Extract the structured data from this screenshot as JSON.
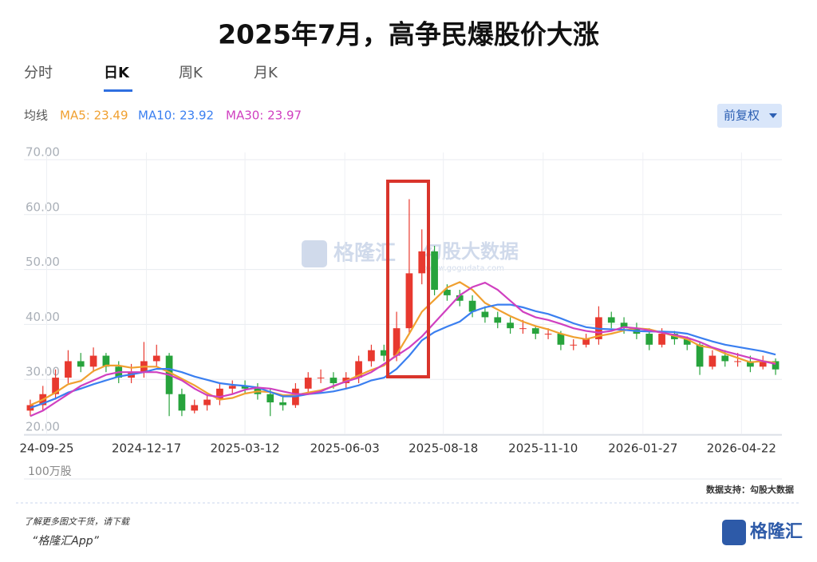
{
  "header": {
    "title": "2025年7月，高争民爆股价大涨",
    "tabs": [
      "分时",
      "日K",
      "周K",
      "月K"
    ],
    "active_tab": 1
  },
  "watermark": {
    "brand": "格隆汇",
    "site_name": "勾股大数据",
    "url": "www.gogudata.com"
  },
  "chart_data": {
    "type": "candlestick",
    "ma_label": "均线",
    "adjust_button": "前复权",
    "volume_unit": "100万股",
    "source": "数据支持：勾股大数据",
    "up_color": "#e8392f",
    "down_color": "#27a33c",
    "grid": true,
    "open": [
      23,
      24,
      26,
      29,
      32,
      31,
      33,
      31,
      29,
      30,
      32,
      33,
      26,
      23,
      24,
      25,
      27,
      27.5,
      27,
      26,
      24.5,
      24,
      27,
      29,
      29,
      28,
      29,
      32,
      34,
      33,
      38,
      48,
      52,
      45,
      44,
      43,
      41,
      40,
      39,
      38,
      38,
      37,
      37,
      35,
      35,
      36,
      40,
      39,
      38,
      37,
      35,
      37,
      36,
      35,
      31,
      33,
      32,
      32,
      31,
      32
    ],
    "high": [
      25,
      27.5,
      30.5,
      34,
      33.5,
      34.5,
      33.5,
      32,
      31.5,
      35.5,
      35,
      33.5,
      27,
      25,
      26,
      28,
      28.5,
      28.5,
      28,
      27,
      25.5,
      28,
      30,
      30.5,
      30,
      30,
      33,
      35,
      35,
      41,
      61.5,
      56,
      53,
      46,
      45,
      44,
      42,
      41,
      40,
      39.5,
      38.5,
      38,
      37.5,
      36,
      37,
      42,
      41,
      40,
      39,
      38,
      38,
      37.5,
      36.5,
      35.5,
      34,
      34,
      33.5,
      33,
      33,
      32.5
    ],
    "low": [
      22,
      23,
      25,
      28,
      30,
      30,
      30,
      28,
      28,
      29,
      31,
      22,
      22,
      22.5,
      23,
      24,
      26,
      26,
      25,
      22,
      23,
      23.5,
      26,
      28,
      27,
      27,
      28,
      31,
      32,
      32,
      37,
      46,
      44,
      43,
      42,
      40,
      39,
      38,
      37,
      37,
      36,
      36,
      34,
      34,
      34.5,
      35,
      38,
      37,
      36,
      34,
      34.5,
      35,
      34,
      29.5,
      30.5,
      31,
      31,
      30,
      30.5,
      29.5
    ],
    "close": [
      24,
      26,
      29,
      32,
      31,
      33,
      31,
      29,
      30,
      32,
      33,
      26,
      23,
      24,
      25,
      27,
      27.5,
      27,
      26,
      24.5,
      24,
      27,
      29,
      29,
      28,
      29,
      32,
      34,
      33,
      38,
      48,
      52,
      45,
      44,
      43,
      41,
      40,
      39,
      38,
      38,
      37,
      37,
      35,
      35,
      36,
      40,
      39,
      38,
      37,
      35,
      37,
      36,
      35,
      31,
      33,
      32,
      32,
      31,
      32,
      30.5
    ],
    "series": [
      {
        "name": "MA5: 23.49",
        "color": "#f0a030",
        "values": [
          24,
          25,
          26.3,
          27.8,
          28.4,
          30.2,
          31.2,
          31.2,
          30.8,
          31,
          31,
          30,
          28.8,
          27.6,
          26.2,
          25,
          25.3,
          26.1,
          26.5,
          26.4,
          25.8,
          25.8,
          26.3,
          26.7,
          27.4,
          28.4,
          29.4,
          30.4,
          31.2,
          33.2,
          37,
          41,
          43.2,
          45.4,
          46.4,
          45,
          42.6,
          41.4,
          40.2,
          39.2,
          38.4,
          37.8,
          37,
          36.4,
          36,
          36.6,
          37,
          37.6,
          38,
          37.8,
          37.2,
          36.6,
          36,
          34.8,
          34.4,
          33.4,
          32.6,
          31.8,
          32,
          31.7
        ]
      },
      {
        "name": "MA10: 23.92",
        "color": "#3a7ff0",
        "values": [
          23.5,
          24.3,
          25.2,
          26.3,
          27,
          27.8,
          28.5,
          29.2,
          29.6,
          30,
          30.6,
          30.6,
          30,
          29.2,
          28.6,
          28,
          27.7,
          27.5,
          27.2,
          26.4,
          25.6,
          25.6,
          26,
          26.2,
          26.5,
          27,
          27.6,
          28.5,
          29,
          30.6,
          33,
          35.8,
          37.3,
          38.3,
          39.2,
          41,
          41.8,
          42.3,
          42.3,
          41.8,
          41.1,
          40.6,
          39.8,
          38.9,
          38.2,
          37.9,
          37.8,
          37.7,
          37.5,
          37.4,
          37.4,
          37.3,
          37,
          36.3,
          35.6,
          35,
          34.6,
          34.2,
          33.8,
          33.2
        ]
      },
      {
        "name": "MA30: 23.97",
        "color": "#d040c0",
        "values": [
          22,
          23,
          24.5,
          26,
          27.5,
          28.5,
          29.5,
          30,
          30,
          30,
          30,
          29.5,
          28.5,
          27,
          25.8,
          25.5,
          26,
          26.8,
          27.2,
          27,
          26.5,
          26,
          26,
          26.5,
          27.5,
          28.3,
          29,
          30,
          31.5,
          33,
          34.5,
          36.5,
          39,
          41.5,
          44,
          45.5,
          46.3,
          45,
          43,
          41,
          40,
          39.5,
          38.8,
          38,
          37.5,
          37.2,
          37.5,
          38.2,
          38,
          37.6,
          37.2,
          36.8,
          36.3,
          35.5,
          34.5,
          33.8,
          33.2,
          32.6,
          32,
          31.5
        ]
      }
    ],
    "xlim": [
      -0.5,
      59.5
    ],
    "xticks": [
      {
        "value": 1.3,
        "label": "24-09-25"
      },
      {
        "value": 9.2,
        "label": "2024-12-17"
      },
      {
        "value": 17,
        "label": "2025-03-12"
      },
      {
        "value": 24.9,
        "label": "2025-06-03"
      },
      {
        "value": 32.7,
        "label": "2025-08-18"
      },
      {
        "value": 40.6,
        "label": "2025-11-10"
      },
      {
        "value": 48.5,
        "label": "2026-01-27"
      },
      {
        "value": 56.3,
        "label": "2026-04-22"
      }
    ],
    "ylim": [
      20,
      70
    ],
    "yticks": [
      {
        "value": 70,
        "label": "70.00"
      },
      {
        "value": 60,
        "label": "60.00"
      },
      {
        "value": 50,
        "label": "50.00"
      },
      {
        "value": 40,
        "label": "40.00"
      },
      {
        "value": 30,
        "label": "30.00"
      },
      {
        "value": 20,
        "label": "20.00"
      }
    ]
  },
  "footer": {
    "promo": "了解更多图文干货，请下载",
    "app": "“格隆汇App”",
    "logo": "格隆汇"
  }
}
